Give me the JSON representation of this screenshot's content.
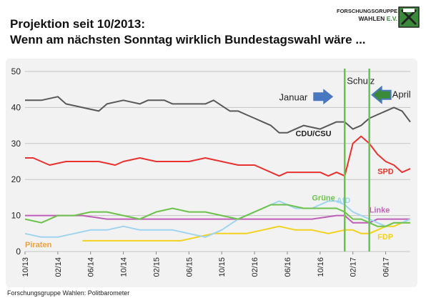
{
  "header": {
    "title_line1": "Projektion seit 10/2013:",
    "title_line2": "Wenn am nächsten Sonntag wirklich Bundestagswahl wäre ...",
    "logo_line1": "FORSCHUNGSGRUPPE",
    "logo_line2_main": "WAHLEN",
    "logo_line2_suffix": "E.V."
  },
  "footer": {
    "source": "Forschungsgruppe Wahlen: Politbarometer"
  },
  "chart_data": {
    "type": "line",
    "title": "Wenn am nächsten Sonntag wirklich Bundestagswahl wäre ...",
    "ylim": [
      0,
      50
    ],
    "yticks": [
      0,
      10,
      20,
      30,
      40,
      50
    ],
    "xlim": [
      "2013-10",
      "2017-09"
    ],
    "xticks": [
      "10/13",
      "02/14",
      "06/14",
      "10/14",
      "02/15",
      "06/15",
      "10/15",
      "02/16",
      "06/16",
      "10/16",
      "02/17",
      "06/17"
    ],
    "grid": "horizontal",
    "series": [
      {
        "name": "CDU/CSU",
        "color": "#595959",
        "x": [
          "2013-10",
          "2013-12",
          "2014-02",
          "2014-03",
          "2014-05",
          "2014-07",
          "2014-08",
          "2014-10",
          "2014-12",
          "2015-01",
          "2015-03",
          "2015-04",
          "2015-06",
          "2015-08",
          "2015-09",
          "2015-11",
          "2015-12",
          "2016-01",
          "2016-02",
          "2016-03",
          "2016-04",
          "2016-05",
          "2016-06",
          "2016-07",
          "2016-08",
          "2016-10",
          "2016-11",
          "2016-12",
          "2017-01",
          "2017-02",
          "2017-03",
          "2017-04",
          "2017-05",
          "2017-06",
          "2017-07",
          "2017-08",
          "2017-09"
        ],
        "values": [
          42,
          42,
          43,
          41,
          40,
          39,
          41,
          42,
          41,
          42,
          42,
          41,
          41,
          41,
          42,
          39,
          39,
          38,
          37,
          36,
          35,
          33,
          33,
          34,
          35,
          34,
          35,
          36,
          36,
          34,
          35,
          37,
          38,
          39,
          40,
          39,
          36
        ]
      },
      {
        "name": "SPD",
        "color": "#e8322f",
        "x": [
          "2013-10",
          "2013-11",
          "2013-12",
          "2014-01",
          "2014-03",
          "2014-05",
          "2014-07",
          "2014-09",
          "2014-10",
          "2014-12",
          "2015-02",
          "2015-04",
          "2015-06",
          "2015-08",
          "2015-10",
          "2015-12",
          "2016-02",
          "2016-04",
          "2016-05",
          "2016-06",
          "2016-08",
          "2016-10",
          "2016-11",
          "2016-12",
          "2017-01",
          "2017-02",
          "2017-03",
          "2017-04",
          "2017-05",
          "2017-06",
          "2017-07",
          "2017-08",
          "2017-09"
        ],
        "values": [
          26,
          26,
          25,
          24,
          25,
          25,
          25,
          24,
          25,
          26,
          25,
          25,
          25,
          26,
          25,
          24,
          24,
          22,
          21,
          22,
          22,
          22,
          21,
          22,
          21,
          30,
          32,
          30,
          27,
          25,
          24,
          22,
          23
        ]
      },
      {
        "name": "Grüne",
        "color": "#6cc24a",
        "x": [
          "2013-10",
          "2013-12",
          "2014-02",
          "2014-04",
          "2014-06",
          "2014-08",
          "2014-10",
          "2014-12",
          "2015-02",
          "2015-04",
          "2015-06",
          "2015-08",
          "2015-10",
          "2015-12",
          "2016-02",
          "2016-04",
          "2016-06",
          "2016-08",
          "2016-10",
          "2016-12",
          "2017-01",
          "2017-02",
          "2017-03",
          "2017-04",
          "2017-05",
          "2017-06",
          "2017-07",
          "2017-08",
          "2017-09"
        ],
        "values": [
          9,
          8,
          10,
          10,
          11,
          11,
          10,
          9,
          11,
          12,
          11,
          11,
          10,
          9,
          11,
          13,
          13,
          12,
          12,
          12,
          11,
          9,
          9,
          8,
          7,
          7,
          8,
          8,
          8
        ]
      },
      {
        "name": "AfD",
        "color": "#9fd4f0",
        "x": [
          "2013-10",
          "2013-12",
          "2014-02",
          "2014-04",
          "2014-06",
          "2014-08",
          "2014-10",
          "2014-12",
          "2015-02",
          "2015-04",
          "2015-06",
          "2015-08",
          "2015-10",
          "2015-12",
          "2016-01",
          "2016-03",
          "2016-05",
          "2016-07",
          "2016-09",
          "2016-11",
          "2016-12",
          "2017-01",
          "2017-02",
          "2017-03",
          "2017-04",
          "2017-05",
          "2017-06",
          "2017-07",
          "2017-08",
          "2017-09"
        ],
        "values": [
          5,
          4,
          4,
          5,
          6,
          6,
          7,
          6,
          6,
          6,
          5,
          4,
          6,
          9,
          10,
          12,
          14,
          12,
          12,
          14,
          14,
          13,
          11,
          10,
          9,
          8,
          7,
          8,
          8,
          9
        ]
      },
      {
        "name": "Linke",
        "color": "#c05fb8",
        "x": [
          "2013-10",
          "2013-12",
          "2014-02",
          "2014-05",
          "2014-08",
          "2014-10",
          "2014-12",
          "2015-03",
          "2015-06",
          "2015-09",
          "2015-12",
          "2016-03",
          "2016-06",
          "2016-09",
          "2016-12",
          "2017-01",
          "2017-02",
          "2017-03",
          "2017-04",
          "2017-05",
          "2017-06",
          "2017-07",
          "2017-08",
          "2017-09"
        ],
        "values": [
          10,
          10,
          10,
          10,
          9,
          9,
          9,
          9,
          9,
          9,
          9,
          9,
          9,
          9,
          10,
          10,
          8,
          8,
          8,
          9,
          9,
          9,
          9,
          9
        ]
      },
      {
        "name": "FDP",
        "color": "#f2d21c",
        "x": [
          "2014-05",
          "2014-07",
          "2014-09",
          "2014-11",
          "2015-01",
          "2015-03",
          "2015-05",
          "2015-07",
          "2015-09",
          "2015-11",
          "2016-01",
          "2016-03",
          "2016-05",
          "2016-07",
          "2016-09",
          "2016-11",
          "2017-01",
          "2017-02",
          "2017-03",
          "2017-04",
          "2017-05",
          "2017-06",
          "2017-07",
          "2017-08",
          "2017-09"
        ],
        "values": [
          3,
          3,
          3,
          3,
          3,
          3,
          3,
          4,
          5,
          5,
          5,
          6,
          7,
          6,
          6,
          5,
          6,
          6,
          5,
          5,
          6,
          7,
          7,
          8,
          8
        ]
      },
      {
        "name": "Piraten",
        "color": "#f0a040",
        "x": [
          "2013-10",
          "2013-12",
          "2014-02",
          "2014-03"
        ],
        "values": [
          2,
          2,
          2,
          2
        ]
      }
    ],
    "vlines": [
      {
        "x": "2017-01",
        "label": "Schulz",
        "color": "#6cc24a"
      },
      {
        "x": "2017-04",
        "label": "",
        "color": "#6cc24a"
      }
    ],
    "annotations": [
      {
        "text": "Januar",
        "arrow_direction": "right",
        "arrow_color": "#4a78c0"
      },
      {
        "text": "April",
        "arrow_direction": "left",
        "arrow_color": "#4a78c0",
        "arrow_fill": "#3a8a3a"
      }
    ]
  }
}
